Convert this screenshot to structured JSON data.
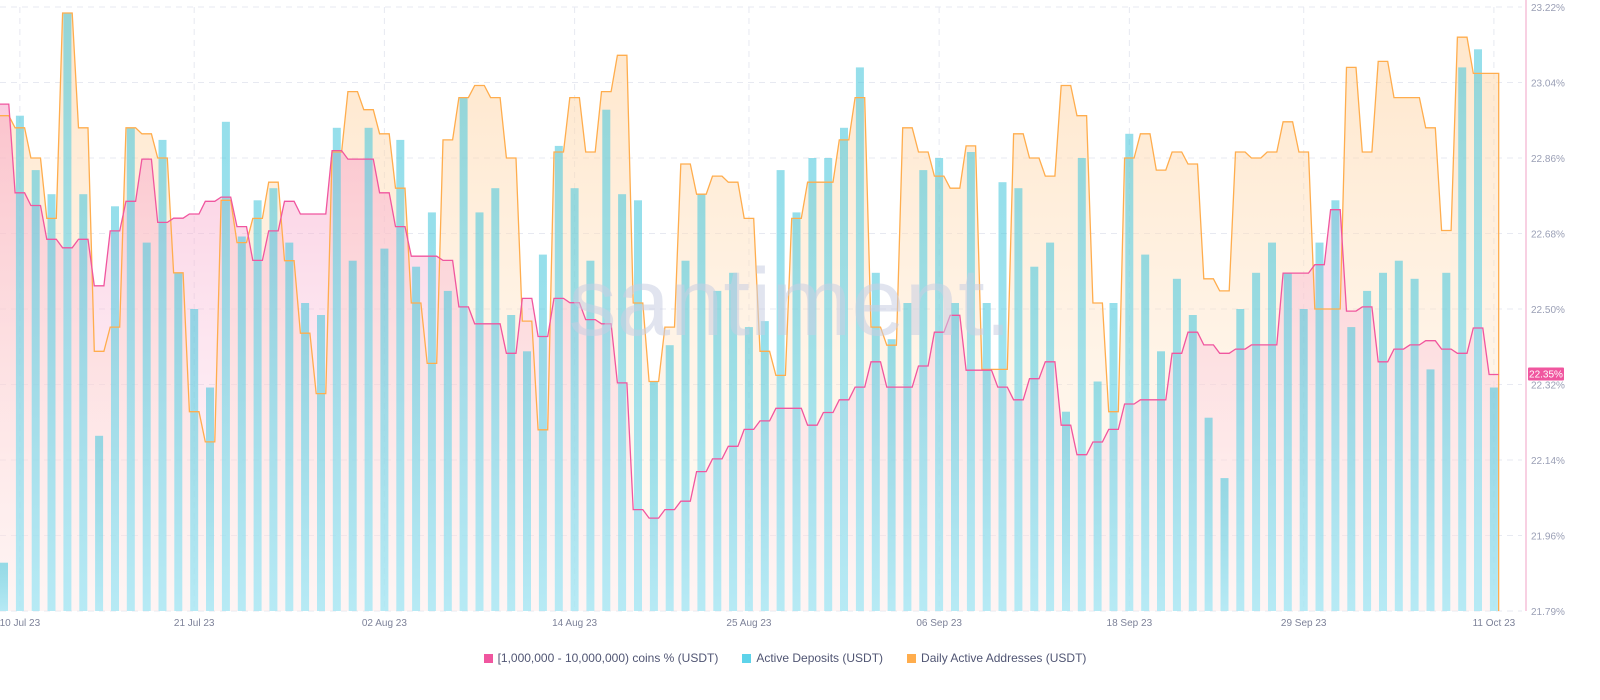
{
  "watermark": "santiment.",
  "chart_data": {
    "type": "bar+line+area",
    "title": "",
    "legend_position": "bottom",
    "grid": true,
    "y_axis_right": {
      "ticks": [
        "23.22%",
        "23.04%",
        "22.86%",
        "22.68%",
        "22.50%",
        "22.32%",
        "22.14%",
        "21.96%",
        "21.79%"
      ],
      "range": [
        21.79,
        23.22
      ],
      "current_value_label": "22.35%"
    },
    "x_ticks": [
      "10 Jul 23",
      "21 Jul 23",
      "02 Aug 23",
      "14 Aug 23",
      "25 Aug 23",
      "06 Sep 23",
      "18 Sep 23",
      "29 Sep 23",
      "11 Oct 23"
    ],
    "x": [
      "09 Jul",
      "10 Jul",
      "11 Jul",
      "12 Jul",
      "13 Jul",
      "14 Jul",
      "15 Jul",
      "16 Jul",
      "17 Jul",
      "18 Jul",
      "19 Jul",
      "20 Jul",
      "21 Jul",
      "22 Jul",
      "23 Jul",
      "24 Jul",
      "25 Jul",
      "26 Jul",
      "27 Jul",
      "28 Jul",
      "29 Jul",
      "30 Jul",
      "31 Jul",
      "01 Aug",
      "02 Aug",
      "03 Aug",
      "04 Aug",
      "05 Aug",
      "06 Aug",
      "07 Aug",
      "08 Aug",
      "09 Aug",
      "10 Aug",
      "11 Aug",
      "12 Aug",
      "13 Aug",
      "14 Aug",
      "15 Aug",
      "16 Aug",
      "17 Aug",
      "18 Aug",
      "19 Aug",
      "20 Aug",
      "21 Aug",
      "22 Aug",
      "23 Aug",
      "24 Aug",
      "25 Aug",
      "26 Aug",
      "27 Aug",
      "28 Aug",
      "29 Aug",
      "30 Aug",
      "31 Aug",
      "01 Sep",
      "02 Sep",
      "03 Sep",
      "04 Sep",
      "05 Sep",
      "06 Sep",
      "07 Sep",
      "08 Sep",
      "09 Sep",
      "10 Sep",
      "11 Sep",
      "12 Sep",
      "13 Sep",
      "14 Sep",
      "15 Sep",
      "16 Sep",
      "17 Sep",
      "18 Sep",
      "19 Sep",
      "20 Sep",
      "21 Sep",
      "22 Sep",
      "23 Sep",
      "24 Sep",
      "25 Sep",
      "26 Sep",
      "27 Sep",
      "28 Sep",
      "29 Sep",
      "30 Sep",
      "01 Oct",
      "02 Oct",
      "03 Oct",
      "04 Oct",
      "05 Oct",
      "06 Oct",
      "07 Oct",
      "08 Oct",
      "09 Oct",
      "10 Oct",
      "11 Oct"
    ],
    "series": [
      {
        "name": "[1,000,000 - 10,000,000) coins % (USDT)",
        "kind": "line",
        "axis": "right",
        "color": "#f0569f",
        "values": [
          22.99,
          22.78,
          22.75,
          22.67,
          22.65,
          22.67,
          22.56,
          22.69,
          22.76,
          22.86,
          22.71,
          22.72,
          22.73,
          22.76,
          22.77,
          22.7,
          22.62,
          22.69,
          22.76,
          22.73,
          22.73,
          22.88,
          22.86,
          22.86,
          22.78,
          22.7,
          22.63,
          22.63,
          22.62,
          22.51,
          22.47,
          22.47,
          22.4,
          22.53,
          22.44,
          22.53,
          22.52,
          22.48,
          22.47,
          22.33,
          22.03,
          22.01,
          22.03,
          22.05,
          22.12,
          22.15,
          22.18,
          22.22,
          22.24,
          22.27,
          22.27,
          22.23,
          22.26,
          22.29,
          22.32,
          22.38,
          22.32,
          22.32,
          22.37,
          22.45,
          22.49,
          22.36,
          22.36,
          22.32,
          22.29,
          22.34,
          22.38,
          22.23,
          22.16,
          22.19,
          22.22,
          22.28,
          22.29,
          22.29,
          22.4,
          22.45,
          22.42,
          22.4,
          22.41,
          22.42,
          22.42,
          22.59,
          22.59,
          22.61,
          22.74,
          22.5,
          22.51,
          22.38,
          22.41,
          22.42,
          22.43,
          22.41,
          22.4,
          22.46,
          22.35
        ]
      },
      {
        "name": "Active Deposits (USDT)",
        "kind": "bar",
        "axis": "hidden, relative level 0-100",
        "color": "#5dd3ea",
        "values": [
          8,
          82,
          73,
          69,
          99,
          69,
          29,
          67,
          80,
          61,
          78,
          56,
          50,
          37,
          81,
          62,
          68,
          70,
          61,
          51,
          49,
          80,
          58,
          80,
          60,
          78,
          57,
          66,
          53,
          85,
          66,
          70,
          49,
          43,
          59,
          77,
          70,
          58,
          83,
          69,
          68,
          38,
          44,
          58,
          69,
          53,
          56,
          47,
          48,
          73,
          66,
          75,
          75,
          80,
          90,
          56,
          45,
          51,
          73,
          75,
          51,
          76,
          51,
          71,
          70,
          57,
          61,
          33,
          75,
          38,
          51,
          79,
          59,
          43,
          55,
          49,
          32,
          22,
          50,
          56,
          61,
          56,
          50,
          61,
          68,
          47,
          53,
          56,
          58,
          55,
          40,
          56,
          90,
          93,
          37
        ]
      },
      {
        "name": "Daily Active Addresses (USDT)",
        "kind": "area",
        "axis": "hidden, relative level 0-100",
        "color": "#ffad4d",
        "values": [
          82,
          80,
          75,
          65,
          99,
          80,
          43,
          47,
          80,
          79,
          75,
          56,
          33,
          28,
          68,
          61,
          65,
          71,
          58,
          46,
          36,
          76,
          86,
          83,
          79,
          70,
          51,
          41,
          78,
          85,
          87,
          85,
          75,
          48,
          30,
          76,
          85,
          76,
          86,
          92,
          51,
          38,
          47,
          74,
          69,
          72,
          71,
          65,
          43,
          39,
          65,
          71,
          71,
          78,
          85,
          47,
          44,
          80,
          76,
          72,
          70,
          77,
          40,
          40,
          79,
          75,
          72,
          87,
          82,
          51,
          33,
          75,
          79,
          73,
          76,
          74,
          55,
          53,
          76,
          75,
          76,
          81,
          76,
          50,
          50,
          90,
          76,
          91,
          85,
          85,
          80,
          63,
          95,
          89,
          89
        ]
      }
    ]
  }
}
